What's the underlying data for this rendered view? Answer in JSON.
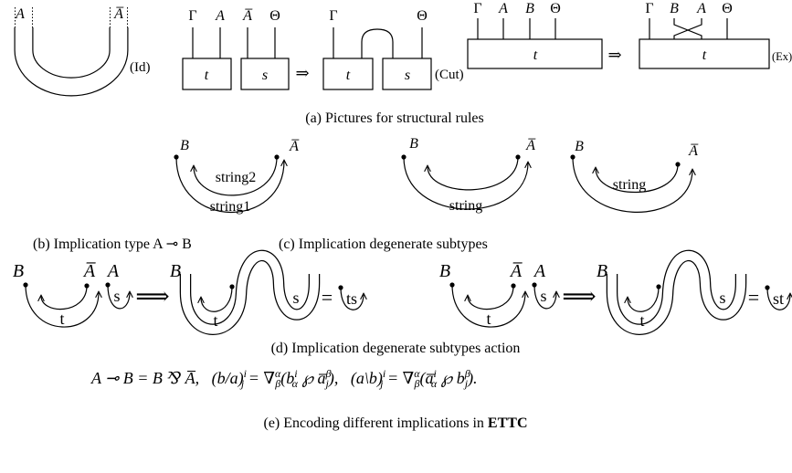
{
  "id": {
    "left": "A",
    "right": "A̅",
    "rule": "(Id)"
  },
  "cut": {
    "before_top": [
      "Γ",
      "A",
      "A̅",
      "Θ"
    ],
    "before_boxes": [
      "t",
      "s"
    ],
    "arrow": "⇒",
    "after_top": [
      "Γ",
      "Θ"
    ],
    "after_boxes": [
      "t",
      "s"
    ],
    "rule": "(Cut)"
  },
  "ex": {
    "before_top": [
      "Γ",
      "A",
      "B",
      "Θ"
    ],
    "before_box": "t",
    "arrow": "⇒",
    "after_top": [
      "Γ",
      "B",
      "A",
      "Θ"
    ],
    "after_box": "t",
    "rule": "(Ex)"
  },
  "b_panel": {
    "labels": [
      "B",
      "A̅"
    ],
    "strings": [
      "string2",
      "string1"
    ]
  },
  "c_panel": [
    {
      "labels": [
        "B",
        "A̅"
      ],
      "string": "string"
    },
    {
      "labels": [
        "B",
        "A̅"
      ],
      "string": "string"
    }
  ],
  "d_panel": [
    {
      "labels": [
        "B",
        "A̅",
        "A"
      ],
      "inner": "t",
      "loop": "s",
      "arrow": "⟹",
      "after_label": "B",
      "after_inner": [
        "t",
        "s"
      ],
      "equals": "=",
      "result": "ts"
    },
    {
      "labels": [
        "B",
        "A̅",
        "A"
      ],
      "inner": "t",
      "loop": "s",
      "arrow": "⟹",
      "after_label": "B",
      "after_inner": [
        "t",
        "s"
      ],
      "equals": "=",
      "result": "st"
    }
  ],
  "captions": {
    "a": "(a) Pictures for structural rules",
    "b": "(b) Implication type A ⊸ B",
    "c": "(c) Implication degenerate subtypes",
    "d": "(d) Implication degenerate subtypes action",
    "e": [
      "(e) Encoding different implications in ",
      "ETTC"
    ]
  },
  "formula": [
    "A ⊸ B = B ⅋ A̅,   (b/a)",
    "i",
    "j",
    " = ∇",
    "α",
    "β",
    "(b",
    "i",
    "α",
    " ℘ a̅",
    "β",
    "j",
    "),   (a\\b)",
    "i",
    "j",
    " = ∇",
    "α",
    "β",
    "(a̅",
    "i",
    "α",
    " ℘ b",
    "β",
    "j",
    ")."
  ]
}
